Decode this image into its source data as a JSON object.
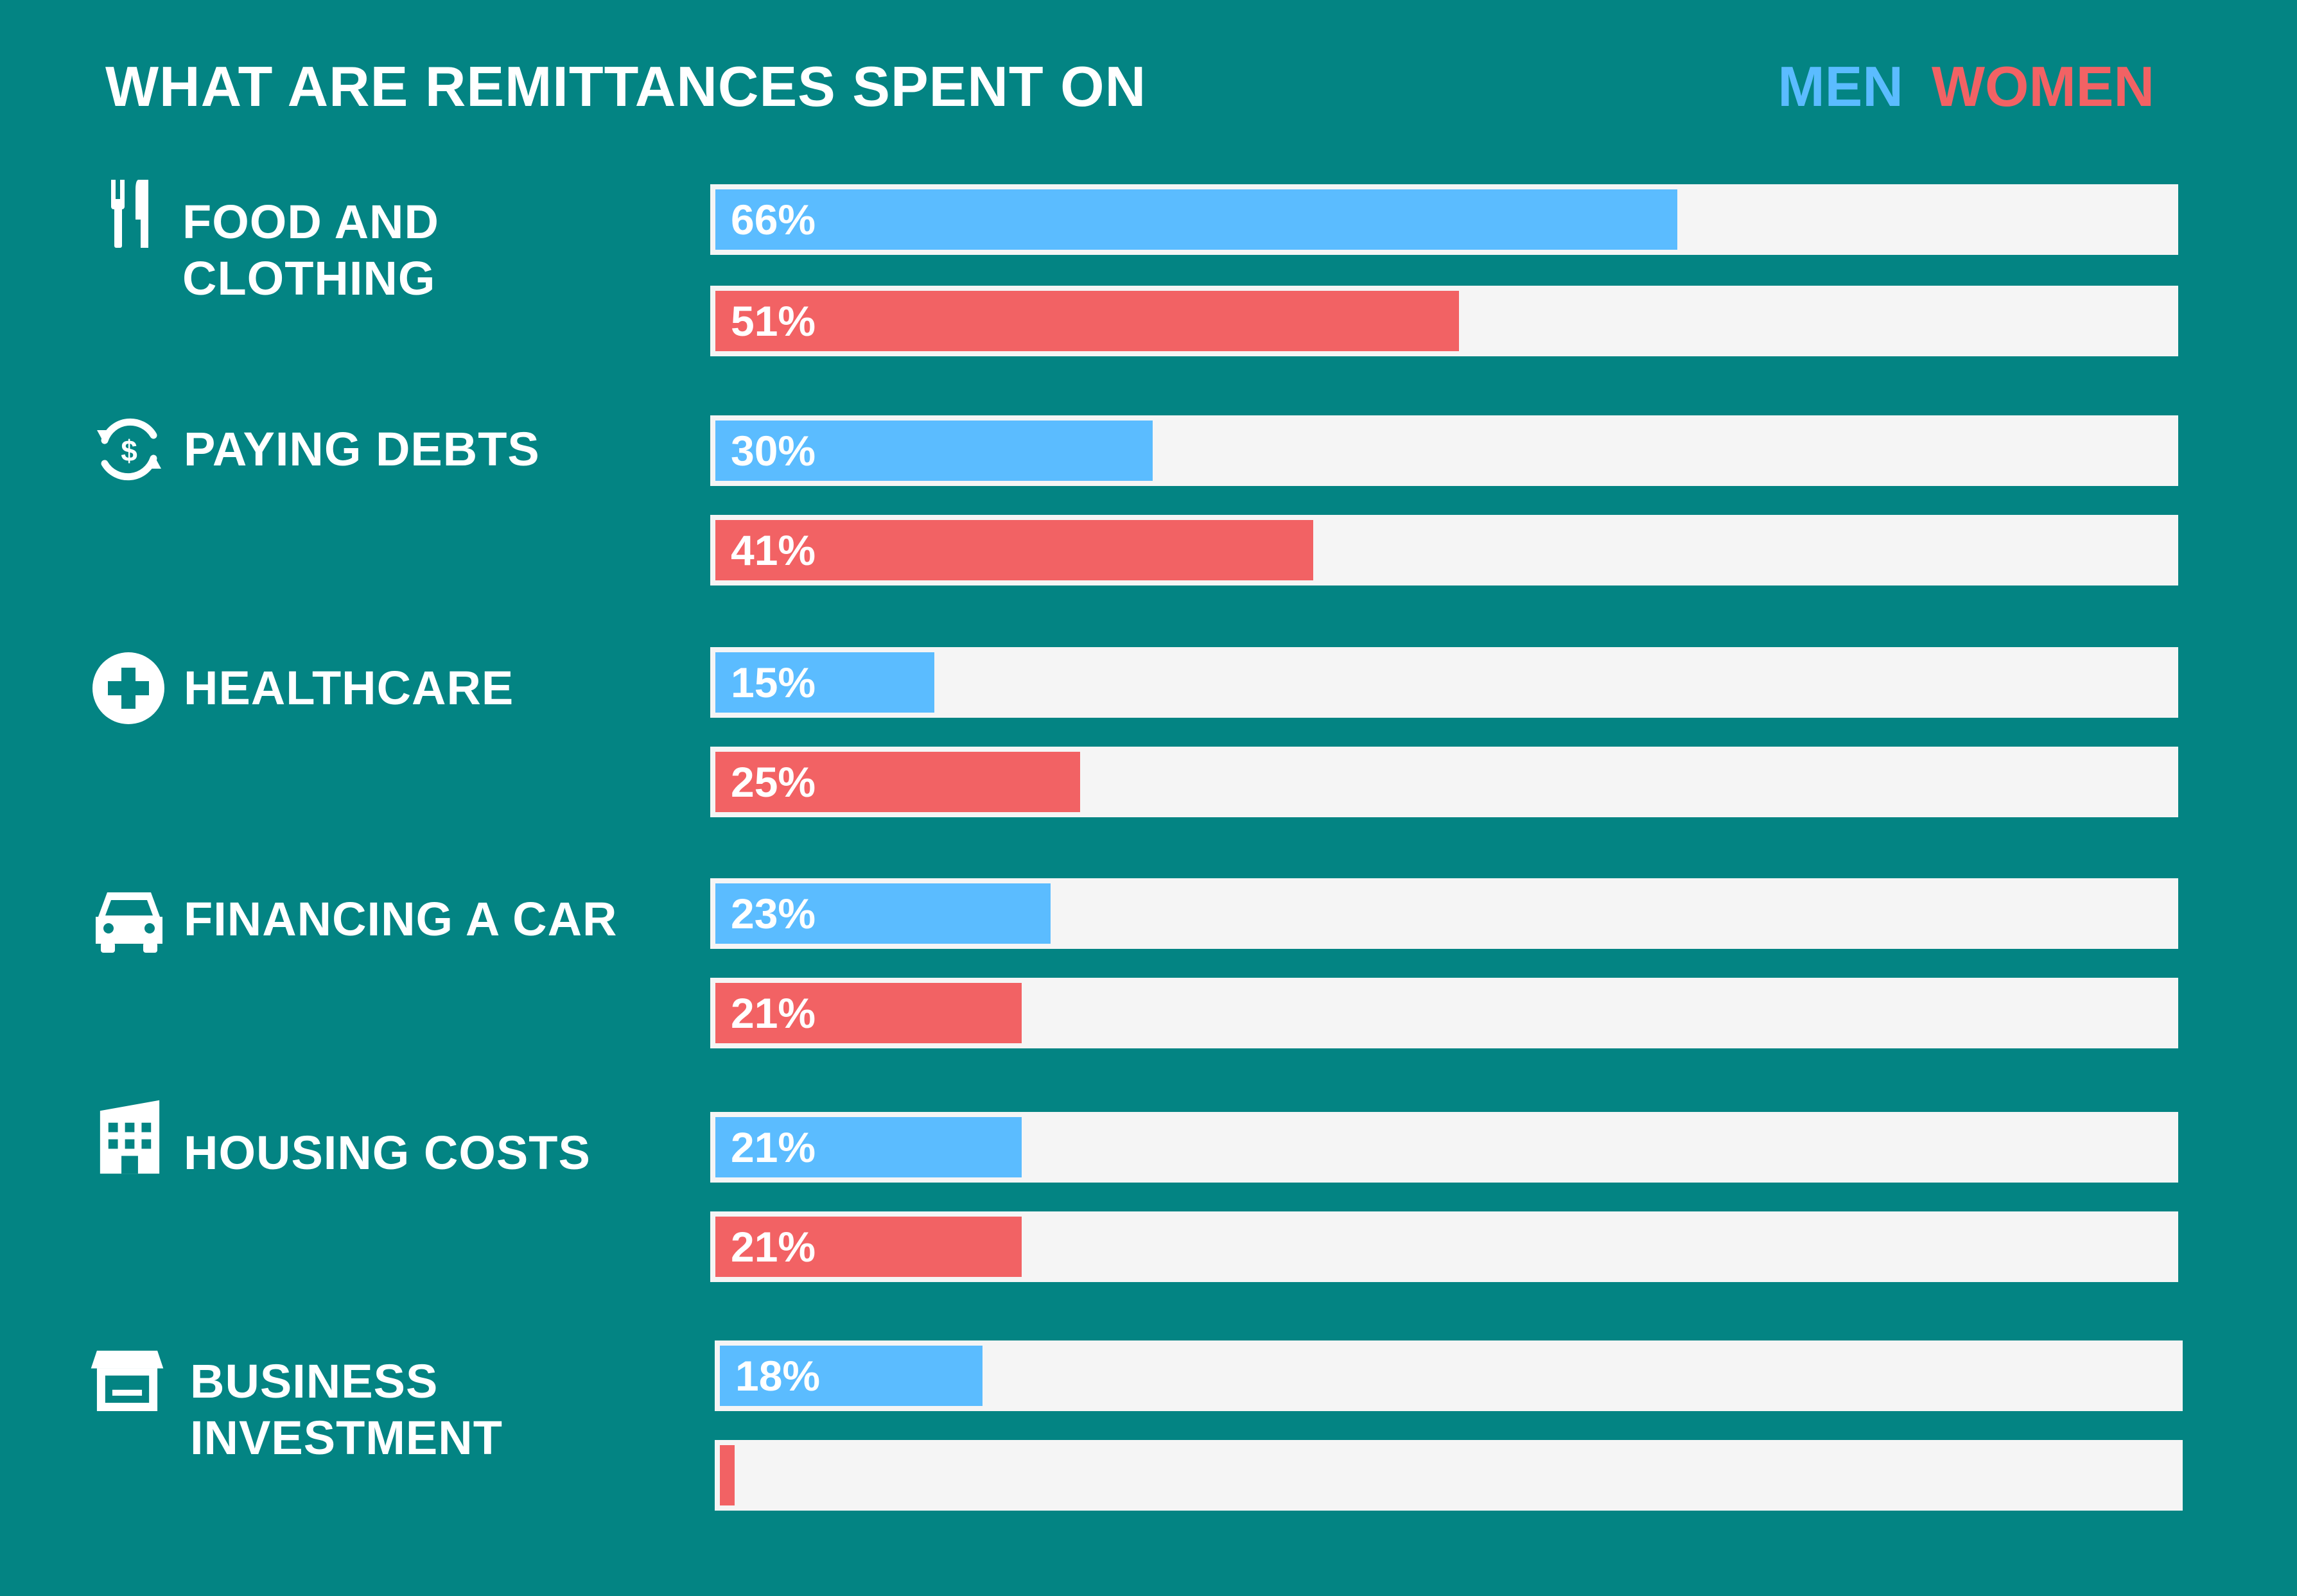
{
  "chart_data": {
    "type": "bar",
    "orientation": "horizontal",
    "title": "WHAT ARE REMITTANCES SPENT ON",
    "legend_position": "top-right",
    "xlim": [
      0,
      100
    ],
    "unit": "%",
    "categories": [
      "FOOD AND CLOTHING",
      "PAYING DEBTS",
      "HEALTHCARE",
      "FINANCING A CAR",
      "HOUSING COSTS",
      "BUSINESS INVESTMENT"
    ],
    "series": [
      {
        "name": "MEN",
        "color": "#5bbcff",
        "values": [
          66,
          30,
          15,
          23,
          21,
          18
        ],
        "labels": [
          "66%",
          "30%",
          "15%",
          "23%",
          "21%",
          "18%"
        ]
      },
      {
        "name": "WOMEN",
        "color": "#f26264",
        "values": [
          51,
          41,
          25,
          21,
          21,
          1
        ],
        "labels": [
          "51%",
          "41%",
          "25%",
          "21%",
          "21%",
          ""
        ]
      }
    ]
  },
  "rows": [
    {
      "label_lines": [
        "FOOD AND",
        "CLOTHING"
      ],
      "icon": "fork-knife-icon"
    },
    {
      "label_lines": [
        "PAYING DEBTS"
      ],
      "icon": "dollar-cycle-icon"
    },
    {
      "label_lines": [
        "HEALTHCARE"
      ],
      "icon": "medical-cross-icon"
    },
    {
      "label_lines": [
        "FINANCING A CAR"
      ],
      "icon": "car-icon"
    },
    {
      "label_lines": [
        "HOUSING COSTS"
      ],
      "icon": "building-icon"
    },
    {
      "label_lines": [
        "BUSINESS",
        "INVESTMENT"
      ],
      "icon": "storefront-icon"
    }
  ],
  "colors": {
    "background": "#038483",
    "track": "#f5f5f5",
    "men": "#5bbcff",
    "women": "#f26264",
    "text": "#ffffff"
  }
}
